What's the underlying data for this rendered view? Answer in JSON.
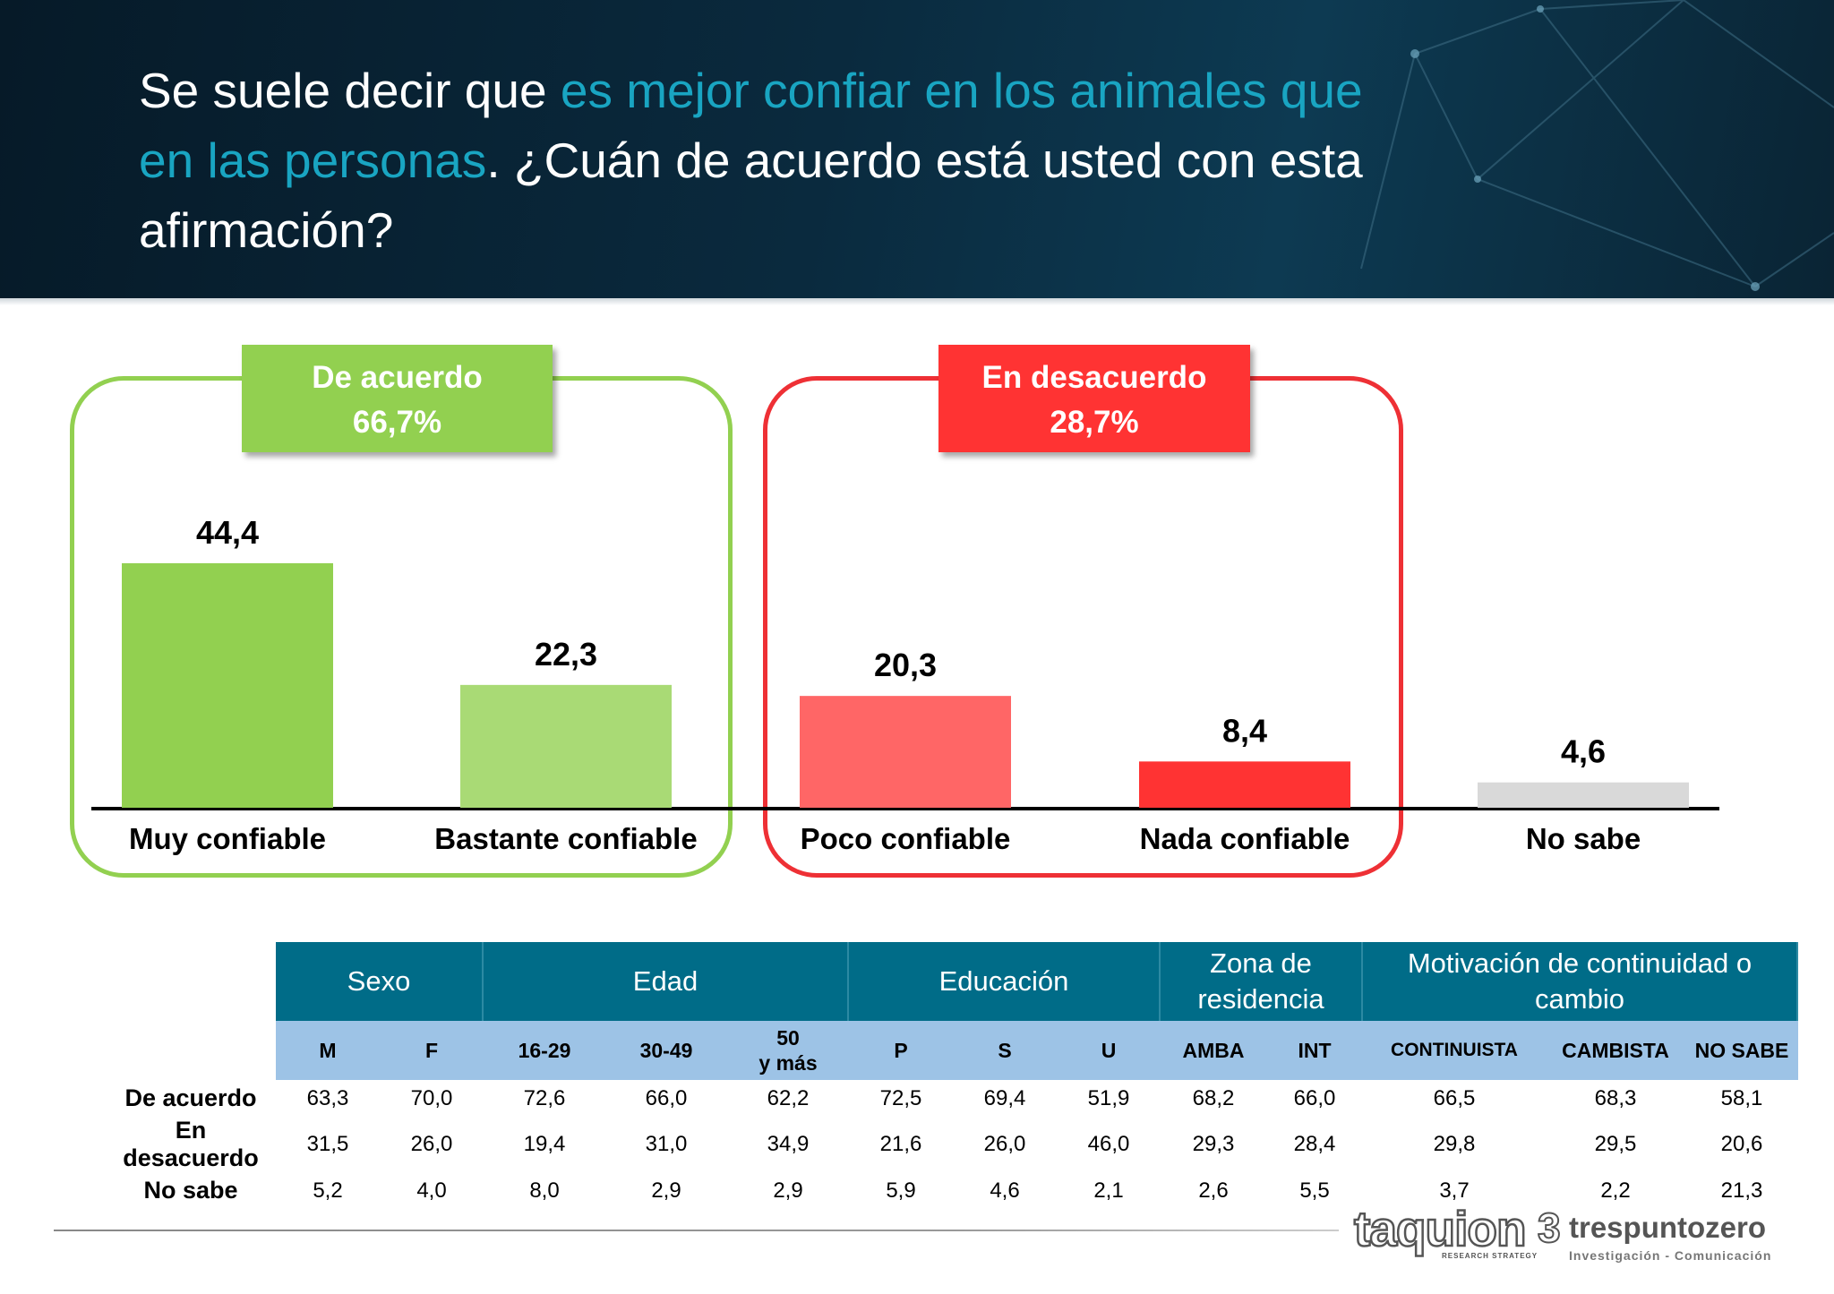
{
  "title": {
    "part1": "Se suele decir que ",
    "highlight": "es mejor confiar en los animales que en las personas",
    "part2": ". ¿Cuán de acuerdo está usted con esta afirmación?"
  },
  "groups": {
    "agree": {
      "label": "De acuerdo",
      "value": "66,7%",
      "color": "#92d050"
    },
    "disagree": {
      "label": "En desacuerdo",
      "value": "28,7%",
      "color": "#ff3333"
    }
  },
  "chart_data": {
    "type": "bar",
    "categories": [
      "Muy confiable",
      "Bastante confiable",
      "Poco confiable",
      "Nada confiable",
      "No sabe"
    ],
    "values": [
      44.4,
      22.3,
      20.3,
      8.4,
      4.6
    ],
    "value_labels": [
      "44,4",
      "22,3",
      "20,3",
      "8,4",
      "4,6"
    ],
    "colors": [
      "#92d050",
      "#a9da75",
      "#ff6666",
      "#ff3333",
      "#d9d9d9"
    ],
    "title": "",
    "xlabel": "",
    "ylabel": "",
    "ylim": [
      0,
      50
    ],
    "grid": false,
    "legend": "none"
  },
  "table": {
    "groups": [
      {
        "label": "Sexo",
        "span": 2
      },
      {
        "label": "Edad",
        "span": 3
      },
      {
        "label": "Educación",
        "span": 3
      },
      {
        "label": "Zona de residencia",
        "span": 2
      },
      {
        "label": "Motivación de continuidad o cambio",
        "span": 3
      }
    ],
    "columns": [
      "M",
      "F",
      "16-29",
      "30-49",
      "50 y más",
      "P",
      "S",
      "U",
      "AMBA",
      "INT",
      "CONTINUISTA",
      "CAMBISTA",
      "NO SABE"
    ],
    "rows": [
      {
        "label": "De acuerdo",
        "values": [
          "63,3",
          "70,0",
          "72,6",
          "66,0",
          "62,2",
          "72,5",
          "69,4",
          "51,9",
          "68,2",
          "66,0",
          "66,5",
          "68,3",
          "58,1"
        ]
      },
      {
        "label": "En desacuerdo",
        "values": [
          "31,5",
          "26,0",
          "19,4",
          "31,0",
          "34,9",
          "21,6",
          "26,0",
          "46,0",
          "29,3",
          "28,4",
          "29,8",
          "29,5",
          "20,6"
        ]
      },
      {
        "label": "No sabe",
        "values": [
          "5,2",
          "4,0",
          "8,0",
          "2,9",
          "2,9",
          "5,9",
          "4,6",
          "2,1",
          "2,6",
          "5,5",
          "3,7",
          "2,2",
          "21,3"
        ]
      }
    ]
  },
  "footer": {
    "logo1": "taquion",
    "logo1_sub": "RESEARCH STRATEGY",
    "logo2_mark": "3",
    "logo2": "trespuntozero",
    "logo2_sub": "Investigación - Comunicación"
  }
}
